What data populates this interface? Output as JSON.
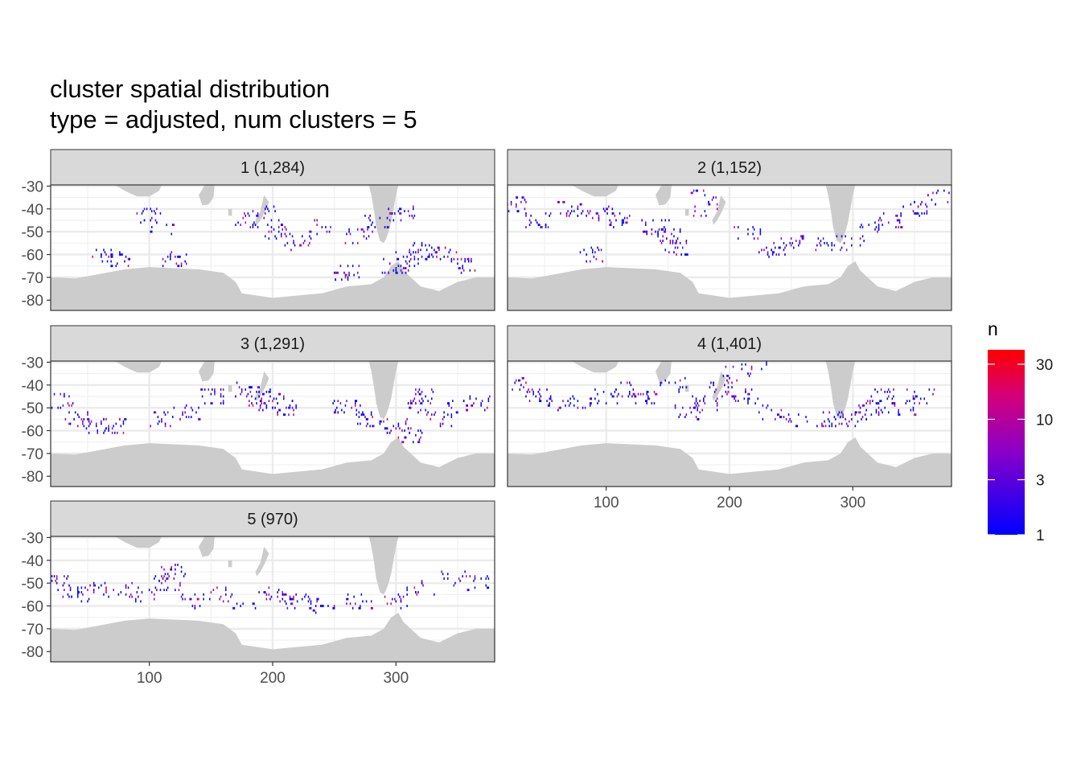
{
  "title": {
    "line1": "cluster spatial distribution",
    "line2": "type = adjusted, num clusters = 5"
  },
  "chart_data": {
    "type": "heatmap",
    "x_ticks": [
      100,
      200,
      300
    ],
    "xlim": [
      20,
      380
    ],
    "y_ticks": [
      -30,
      -40,
      -50,
      -60,
      -70,
      -80
    ],
    "ylim": [
      -84.5,
      -29.5
    ],
    "legend": {
      "title": "n",
      "scale": "log",
      "range": [
        1,
        40
      ],
      "breaks": [
        1,
        3,
        10,
        30
      ],
      "break_labels": [
        "1",
        "3",
        "10",
        "30"
      ],
      "low_color": "#0000ff",
      "mid_color": "#b000b0",
      "high_color": "#ff0000",
      "position": "right"
    },
    "land_color": "#cccccc",
    "facets": [
      {
        "label": "1 (1,284)",
        "cluster": 1,
        "count": 1284,
        "clusters": [
          [
            180,
            -45
          ],
          [
            195,
            -42
          ],
          [
            205,
            -50
          ],
          [
            220,
            -55
          ],
          [
            240,
            -48
          ],
          [
            270,
            -52
          ],
          [
            285,
            -45
          ],
          [
            305,
            -42
          ],
          [
            325,
            -58
          ],
          [
            340,
            -60
          ],
          [
            355,
            -65
          ],
          [
            300,
            -65
          ],
          [
            310,
            -62
          ],
          [
            320,
            -60
          ],
          [
            100,
            -43
          ],
          [
            110,
            -48
          ],
          [
            120,
            -62
          ],
          [
            60,
            -60
          ],
          [
            75,
            -62
          ],
          [
            260,
            -68
          ]
        ]
      },
      {
        "label": "2 (1,152)",
        "cluster": 2,
        "count": 1152,
        "clusters": [
          [
            25,
            -38
          ],
          [
            45,
            -45
          ],
          [
            70,
            -40
          ],
          [
            95,
            -42
          ],
          [
            110,
            -45
          ],
          [
            140,
            -48
          ],
          [
            150,
            -52
          ],
          [
            180,
            -40
          ],
          [
            215,
            -50
          ],
          [
            235,
            -58
          ],
          [
            250,
            -55
          ],
          [
            280,
            -55
          ],
          [
            300,
            -55
          ],
          [
            315,
            -48
          ],
          [
            330,
            -45
          ],
          [
            350,
            -40
          ],
          [
            370,
            -35
          ],
          [
            180,
            -35
          ],
          [
            90,
            -60
          ],
          [
            155,
            -57
          ]
        ]
      },
      {
        "label": "3 (1,291)",
        "cluster": 3,
        "count": 1291,
        "clusters": [
          [
            30,
            -47
          ],
          [
            40,
            -55
          ],
          [
            55,
            -58
          ],
          [
            70,
            -58
          ],
          [
            110,
            -55
          ],
          [
            130,
            -52
          ],
          [
            150,
            -45
          ],
          [
            180,
            -42
          ],
          [
            190,
            -48
          ],
          [
            200,
            -45
          ],
          [
            210,
            -50
          ],
          [
            260,
            -50
          ],
          [
            280,
            -55
          ],
          [
            300,
            -58
          ],
          [
            310,
            -62
          ],
          [
            320,
            -50
          ],
          [
            335,
            -55
          ],
          [
            350,
            -50
          ],
          [
            365,
            -48
          ],
          [
            320,
            -45
          ]
        ]
      },
      {
        "label": "4 (1,401)",
        "cluster": 4,
        "count": 1401,
        "clusters": [
          [
            30,
            -40
          ],
          [
            45,
            -45
          ],
          [
            60,
            -48
          ],
          [
            80,
            -48
          ],
          [
            100,
            -45
          ],
          [
            115,
            -42
          ],
          [
            130,
            -45
          ],
          [
            155,
            -40
          ],
          [
            165,
            -52
          ],
          [
            180,
            -48
          ],
          [
            195,
            -42
          ],
          [
            205,
            -35
          ],
          [
            215,
            -45
          ],
          [
            235,
            -52
          ],
          [
            255,
            -55
          ],
          [
            280,
            -55
          ],
          [
            300,
            -55
          ],
          [
            315,
            -50
          ],
          [
            325,
            -45
          ],
          [
            340,
            -50
          ],
          [
            355,
            -45
          ],
          [
            220,
            -33
          ]
        ]
      },
      {
        "label": "5 (970)",
        "cluster": 5,
        "count": 970,
        "clusters": [
          [
            25,
            -50
          ],
          [
            40,
            -55
          ],
          [
            55,
            -52
          ],
          [
            75,
            -53
          ],
          [
            95,
            -55
          ],
          [
            115,
            -50
          ],
          [
            135,
            -58
          ],
          [
            155,
            -55
          ],
          [
            175,
            -58
          ],
          [
            200,
            -55
          ],
          [
            220,
            -58
          ],
          [
            240,
            -60
          ],
          [
            270,
            -58
          ],
          [
            300,
            -58
          ],
          [
            320,
            -52
          ],
          [
            345,
            -48
          ],
          [
            365,
            -50
          ],
          [
            120,
            -45
          ]
        ]
      }
    ]
  }
}
